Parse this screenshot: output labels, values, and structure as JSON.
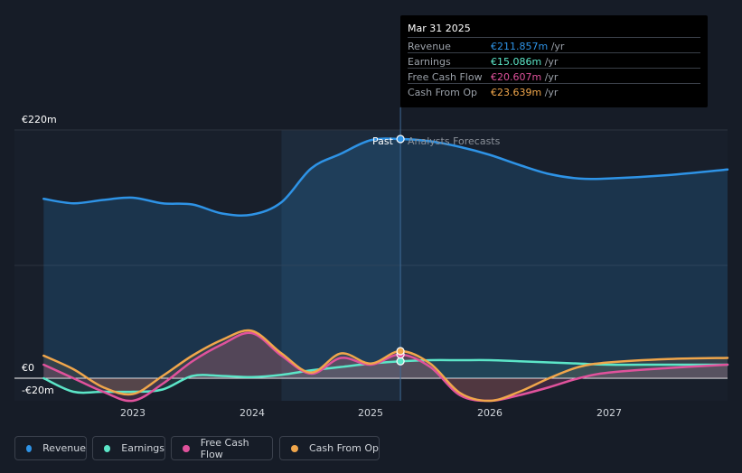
{
  "tooltip": {
    "date": "Mar 31 2025",
    "rows": [
      {
        "label": "Revenue",
        "value": "€211.857m",
        "unit": "/yr",
        "color": "#2e93e6"
      },
      {
        "label": "Earnings",
        "value": "€15.086m",
        "unit": "/yr",
        "color": "#5ce6c8"
      },
      {
        "label": "Free Cash Flow",
        "value": "€20.607m",
        "unit": "/yr",
        "color": "#e0529c"
      },
      {
        "label": "Cash From Op",
        "value": "€23.639m",
        "unit": "/yr",
        "color": "#f0a64b"
      }
    ]
  },
  "labels": {
    "past": "Past",
    "forecast": "Analysts Forecasts"
  },
  "legend": [
    {
      "label": "Revenue",
      "color": "#2e93e6"
    },
    {
      "label": "Earnings",
      "color": "#5ce6c8"
    },
    {
      "label": "Free Cash Flow",
      "color": "#e0529c"
    },
    {
      "label": "Cash From Op",
      "color": "#f0a64b"
    }
  ],
  "chart_data": {
    "type": "line",
    "y_tick_labels": [
      "€220m",
      "€0",
      "-€20m"
    ],
    "x_tick_labels": [
      "2023",
      "2024",
      "2025",
      "2026",
      "2027"
    ],
    "ylim": [
      -20,
      220
    ],
    "xlim": [
      2022.25,
      2028.0
    ],
    "past_start": 2024.25,
    "past_end": 2025.25,
    "series": [
      {
        "name": "Revenue",
        "color": "#2e93e6",
        "x": [
          2022.25,
          2022.5,
          2022.75,
          2023.0,
          2023.25,
          2023.5,
          2023.75,
          2024.0,
          2024.25,
          2024.5,
          2024.75,
          2025.0,
          2025.25,
          2025.5,
          2025.75,
          2026.0,
          2026.25,
          2026.5,
          2026.75,
          2027.0,
          2027.5,
          2028.0
        ],
        "y": [
          159,
          155,
          158,
          160,
          155,
          154,
          146,
          145,
          156,
          186,
          199,
          211,
          212,
          210,
          205,
          198,
          189,
          181,
          177,
          177,
          180,
          185
        ]
      },
      {
        "name": "Earnings",
        "color": "#5ce6c8",
        "x": [
          2022.25,
          2022.5,
          2022.75,
          2023.0,
          2023.25,
          2023.5,
          2023.75,
          2024.0,
          2024.25,
          2024.5,
          2024.75,
          2025.0,
          2025.25,
          2025.5,
          2025.75,
          2026.0,
          2026.25,
          2026.5,
          2026.75,
          2027.0,
          2027.5,
          2028.0
        ],
        "y": [
          0,
          -12,
          -12,
          -12,
          -10,
          2,
          2,
          1,
          3,
          7,
          10,
          13,
          15,
          16,
          16,
          16,
          15,
          14,
          13,
          12,
          12,
          12
        ]
      },
      {
        "name": "Free Cash Flow",
        "color": "#e0529c",
        "x": [
          2022.25,
          2022.5,
          2022.75,
          2023.0,
          2023.25,
          2023.5,
          2023.75,
          2024.0,
          2024.25,
          2024.5,
          2024.75,
          2025.0,
          2025.25,
          2025.5,
          2025.75,
          2026.0,
          2026.25,
          2026.5,
          2026.75,
          2027.0,
          2027.5,
          2028.0
        ],
        "y": [
          12,
          0,
          -12,
          -20,
          -5,
          15,
          30,
          40,
          20,
          4,
          18,
          12,
          21,
          10,
          -15,
          -20,
          -15,
          -8,
          0,
          5,
          9,
          12
        ]
      },
      {
        "name": "Cash From Op",
        "color": "#f0a64b",
        "x": [
          2022.25,
          2022.5,
          2022.75,
          2023.0,
          2023.25,
          2023.5,
          2023.75,
          2024.0,
          2024.25,
          2024.5,
          2024.75,
          2025.0,
          2025.25,
          2025.5,
          2025.75,
          2026.0,
          2026.25,
          2026.5,
          2026.75,
          2027.0,
          2027.5,
          2028.0
        ],
        "y": [
          20,
          8,
          -8,
          -14,
          2,
          20,
          34,
          42,
          22,
          5,
          22,
          13,
          24,
          13,
          -13,
          -20,
          -12,
          0,
          10,
          14,
          17,
          18
        ]
      }
    ]
  }
}
